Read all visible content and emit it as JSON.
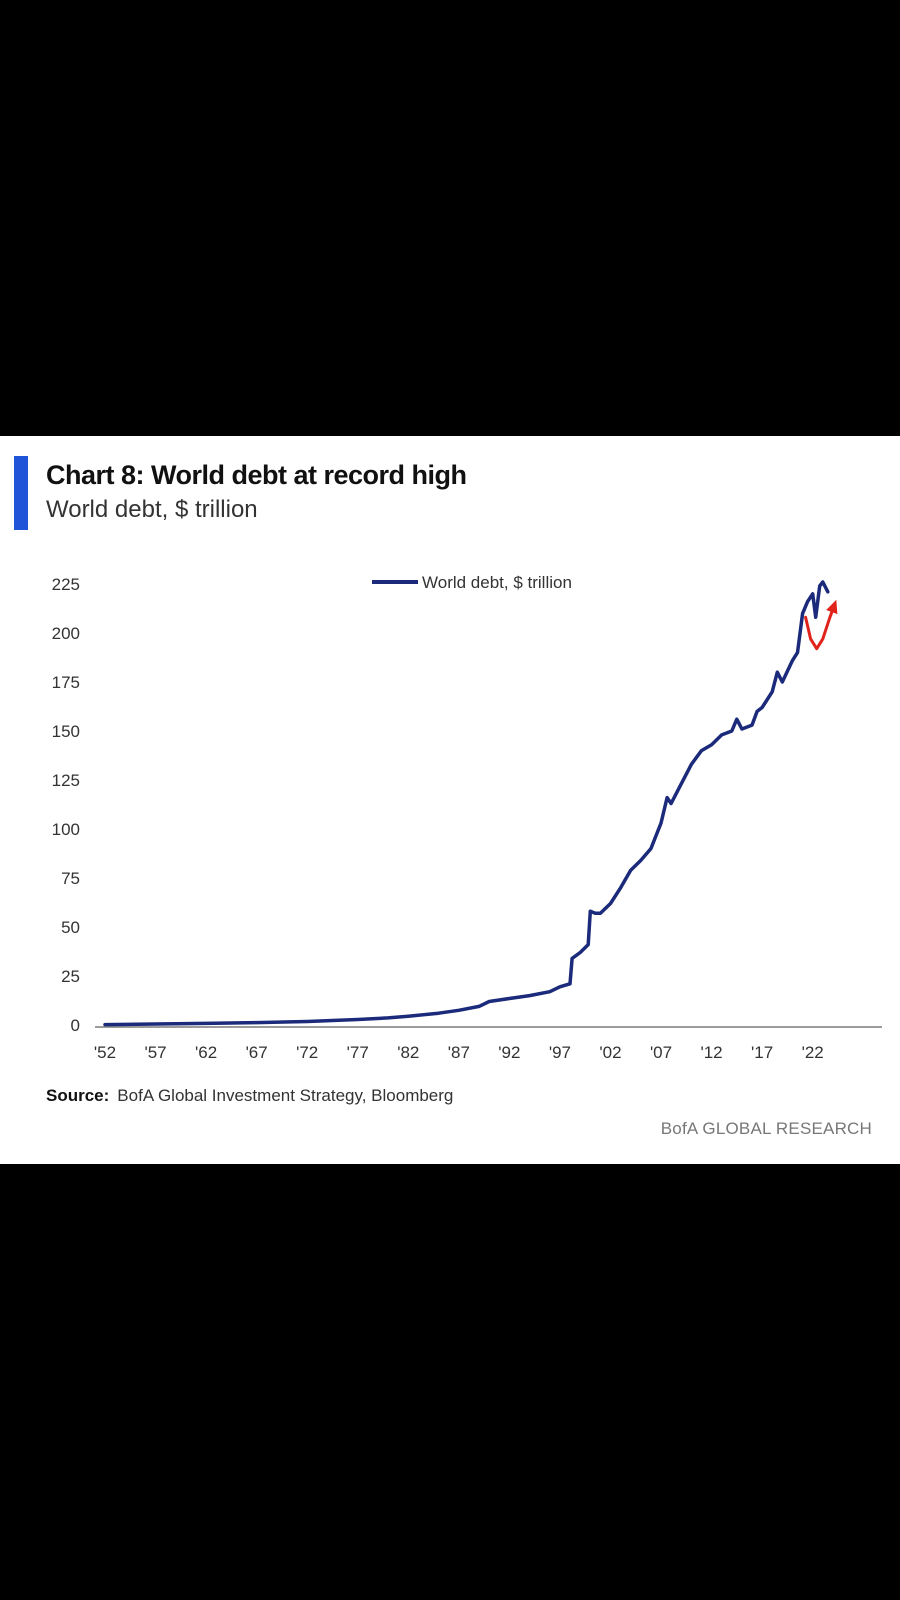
{
  "card": {
    "title": "Chart 8: World debt at record high",
    "subtitle": "World debt, $ trillion",
    "source_label": "Source:",
    "source_text": "BofA Global Investment Strategy, Bloomberg",
    "brand": "BofA GLOBAL RESEARCH"
  },
  "colors": {
    "accent_bar": "#1f54d8",
    "series_line": "#1b2a7a",
    "annotation_arrow": "#e0241b",
    "axis": "#7a7a7a"
  },
  "chart_data": {
    "type": "line",
    "title": "Chart 8: World debt at record high",
    "subtitle": "World debt, $ trillion",
    "xlabel": "",
    "ylabel": "",
    "xlim": [
      1952,
      2025
    ],
    "ylim": [
      0,
      225
    ],
    "y_ticks": [
      0,
      25,
      50,
      75,
      100,
      125,
      150,
      175,
      200,
      225
    ],
    "x_ticks": [
      {
        "year": 1952,
        "label": "'52"
      },
      {
        "year": 1957,
        "label": "'57"
      },
      {
        "year": 1962,
        "label": "'62"
      },
      {
        "year": 1967,
        "label": "'67"
      },
      {
        "year": 1972,
        "label": "'72"
      },
      {
        "year": 1977,
        "label": "'77"
      },
      {
        "year": 1982,
        "label": "'82"
      },
      {
        "year": 1987,
        "label": "'87"
      },
      {
        "year": 1992,
        "label": "'92"
      },
      {
        "year": 1997,
        "label": "'97"
      },
      {
        "year": 2002,
        "label": "'02"
      },
      {
        "year": 2007,
        "label": "'07"
      },
      {
        "year": 2012,
        "label": "'12"
      },
      {
        "year": 2017,
        "label": "'17"
      },
      {
        "year": 2022,
        "label": "'22"
      }
    ],
    "grid": false,
    "legend_position": "top-center",
    "series": [
      {
        "name": "World debt, $ trillion",
        "x": [
          1952,
          1957,
          1962,
          1967,
          1972,
          1977,
          1980,
          1982,
          1985,
          1987,
          1989,
          1990,
          1992,
          1994,
          1996,
          1997,
          1998,
          1998.2,
          1999,
          1999.8,
          2000,
          2000.5,
          2001,
          2002,
          2003,
          2004,
          2005,
          2006,
          2007,
          2007.6,
          2008,
          2009,
          2010,
          2011,
          2012,
          2013,
          2014,
          2014.5,
          2015,
          2016,
          2016.5,
          2017,
          2018,
          2018.5,
          2019,
          2020,
          2020.5,
          2021,
          2021.5,
          2022,
          2022.3,
          2022.7,
          2023,
          2023.5
        ],
        "y": [
          0.2,
          0.5,
          0.8,
          1.2,
          1.8,
          2.8,
          3.6,
          4.5,
          6,
          7.5,
          9.5,
          12,
          13.5,
          15,
          17,
          19.5,
          21,
          34,
          37,
          41,
          58,
          57,
          57,
          62,
          70,
          79,
          84,
          90,
          103,
          116,
          113,
          123,
          133,
          140,
          143,
          148,
          150,
          156,
          151,
          153,
          160,
          162,
          170,
          180,
          175,
          186,
          190,
          210,
          216,
          220,
          208,
          224,
          226,
          221
        ]
      }
    ],
    "annotation": {
      "type": "arrow",
      "shape": "v-swoosh",
      "x": [
        2021.3,
        2021.8,
        2022.4,
        2023,
        2023.7,
        2024.2
      ],
      "y": [
        208,
        197,
        192,
        197,
        208,
        215
      ]
    }
  }
}
